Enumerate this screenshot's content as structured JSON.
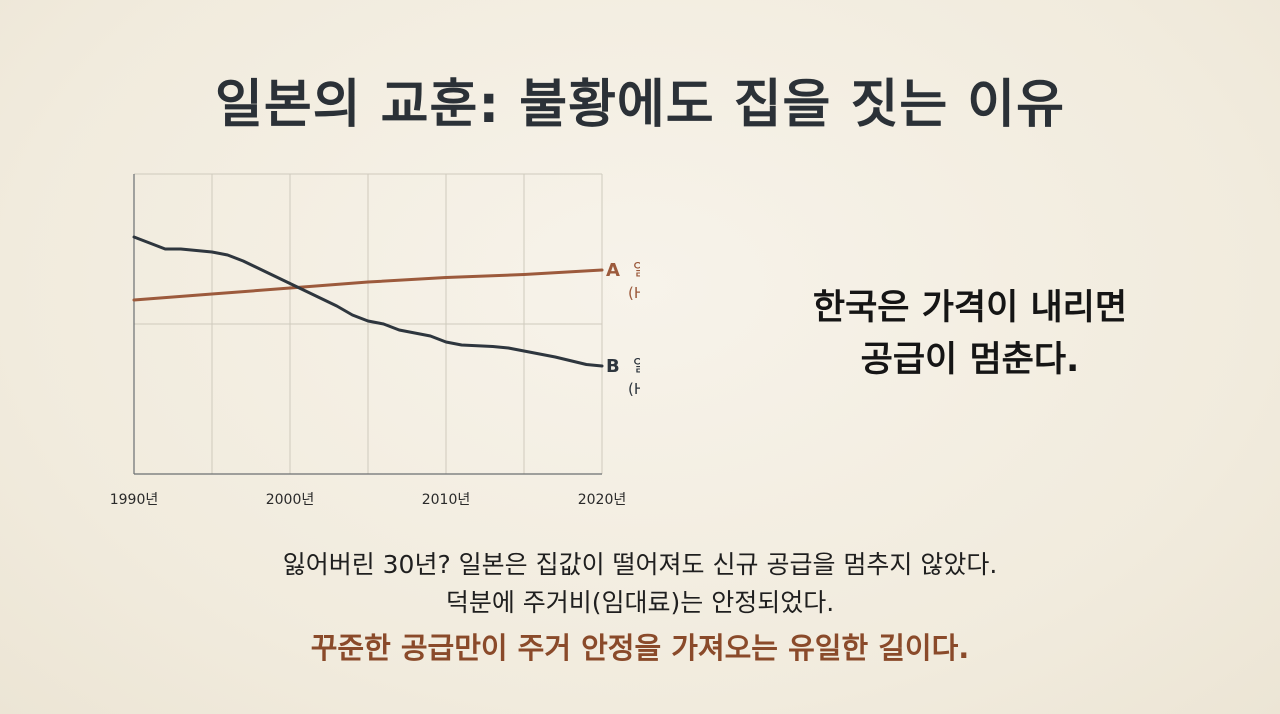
{
  "title": "일본의 교훈: 불황에도 집을 짓는 이유",
  "side_text": {
    "line1": "한국은 가격이 내리면",
    "line2": "공급이 멈춘다."
  },
  "bottom_text": {
    "line1": "잃어버린 30년? 일본은 집값이 떨어져도 신규 공급을 멈추지 않았다.",
    "line2": "덕분에 주거비(임대료)는 안정되었다.",
    "line3": "꾸준한 공급만이 주거 안정을 가져오는 유일한 길이다."
  },
  "colors": {
    "supply": "#9c5a3c",
    "price": "#2e363e",
    "emphasis": "#8a4a2a",
    "grid": "#cfcabd"
  },
  "chart_data": {
    "type": "line",
    "x_ticks": [
      "1990년",
      "2000년",
      "2010년",
      "2020년"
    ],
    "xlim": [
      1990,
      2020
    ],
    "ylim": [
      0,
      100
    ],
    "grid": true,
    "series": [
      {
        "key": "supply",
        "letter": "A",
        "name": "일본 주택 공급",
        "name_en": "(Housing Supply)",
        "x": [
          1990,
          1995,
          2000,
          2005,
          2010,
          2015,
          2020
        ],
        "values": [
          58,
          60,
          62,
          64,
          65.5,
          66.5,
          68
        ]
      },
      {
        "key": "price",
        "letter": "B",
        "name": "일본 주택 가격",
        "name_en": "(Housing Price)",
        "x": [
          1990,
          1992,
          1993,
          1995,
          1996,
          1997,
          1999,
          2001,
          2003,
          2004,
          2005,
          2006,
          2007,
          2008,
          2009,
          2010,
          2011,
          2013,
          2014,
          2016,
          2017,
          2019,
          2020
        ],
        "values": [
          79,
          75,
          75,
          74,
          73,
          71,
          66,
          61,
          56,
          53,
          51,
          50,
          48,
          47,
          46,
          44,
          43,
          42.5,
          42,
          40,
          39,
          36.5,
          36
        ]
      }
    ]
  }
}
